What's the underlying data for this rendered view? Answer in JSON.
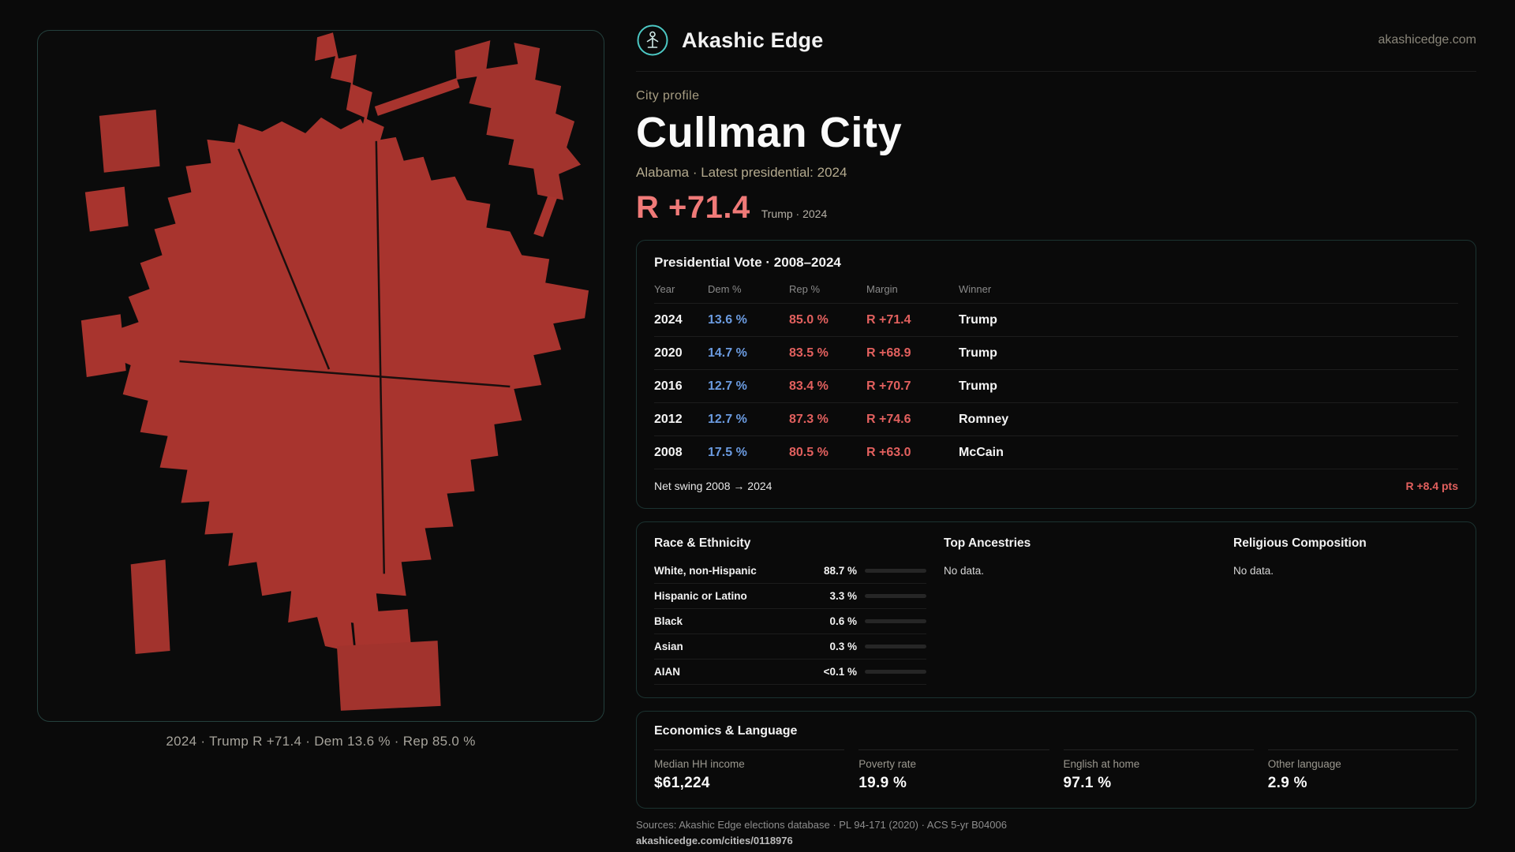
{
  "header": {
    "brand": "Akashic Edge",
    "domain": "akashicedge.com"
  },
  "profile": {
    "kicker": "City profile",
    "title": "Cullman City",
    "subtitle": "Alabama · Latest presidential: 2024",
    "margin_big": "R +71.4",
    "margin_caption": "Trump · 2024"
  },
  "map": {
    "caption": "2024 · Trump R +71.4 · Dem 13.6 % · Rep 85.0 %"
  },
  "vote_card": {
    "title": "Presidential Vote · 2008–2024",
    "columns": [
      "Year",
      "Dem %",
      "Rep %",
      "Margin",
      "Winner"
    ],
    "rows": [
      {
        "year": "2024",
        "dem": "13.6 %",
        "rep": "85.0 %",
        "margin": "R +71.4",
        "winner": "Trump"
      },
      {
        "year": "2020",
        "dem": "14.7 %",
        "rep": "83.5 %",
        "margin": "R +68.9",
        "winner": "Trump"
      },
      {
        "year": "2016",
        "dem": "12.7 %",
        "rep": "83.4 %",
        "margin": "R +70.7",
        "winner": "Trump"
      },
      {
        "year": "2012",
        "dem": "12.7 %",
        "rep": "87.3 %",
        "margin": "R +74.6",
        "winner": "Romney"
      },
      {
        "year": "2008",
        "dem": "17.5 %",
        "rep": "80.5 %",
        "margin": "R +63.0",
        "winner": "McCain"
      }
    ],
    "net_swing_label": "Net swing 2008 → 2024",
    "net_swing_value": "R +8.4 pts"
  },
  "demographics": {
    "race": {
      "title": "Race & Ethnicity",
      "rows": [
        {
          "label": "White, non-Hispanic",
          "value": "88.7 %",
          "pct": 88.7
        },
        {
          "label": "Hispanic or Latino",
          "value": "3.3 %",
          "pct": 3.3
        },
        {
          "label": "Black",
          "value": "0.6 %",
          "pct": 0.6
        },
        {
          "label": "Asian",
          "value": "0.3 %",
          "pct": 0.3
        },
        {
          "label": "AIAN",
          "value": "<0.1 %",
          "pct": 0.1
        }
      ]
    },
    "ancestries": {
      "title": "Top Ancestries",
      "empty": "No data."
    },
    "religion": {
      "title": "Religious Composition",
      "empty": "No data."
    }
  },
  "economics": {
    "title": "Economics & Language",
    "stats": [
      {
        "label": "Median HH income",
        "value": "$61,224"
      },
      {
        "label": "Poverty rate",
        "value": "19.9 %"
      },
      {
        "label": "English at home",
        "value": "97.1 %"
      },
      {
        "label": "Other language",
        "value": "2.9 %"
      }
    ]
  },
  "footer": {
    "sources": "Sources: Akashic Edge elections database · PL 94-171 (2020) · ACS 5-yr B04006",
    "link": "akashicedge.com/cities/0118976"
  },
  "colors": {
    "rep_red": "#e2605e",
    "dem_blue": "#6b9be0",
    "accent_big_margin": "#f07a78",
    "map_red": "#a8342e",
    "brand_teal": "#4cc8c4",
    "muted_tan": "#b4aa8e",
    "bar_fill": "#98a2b5"
  }
}
